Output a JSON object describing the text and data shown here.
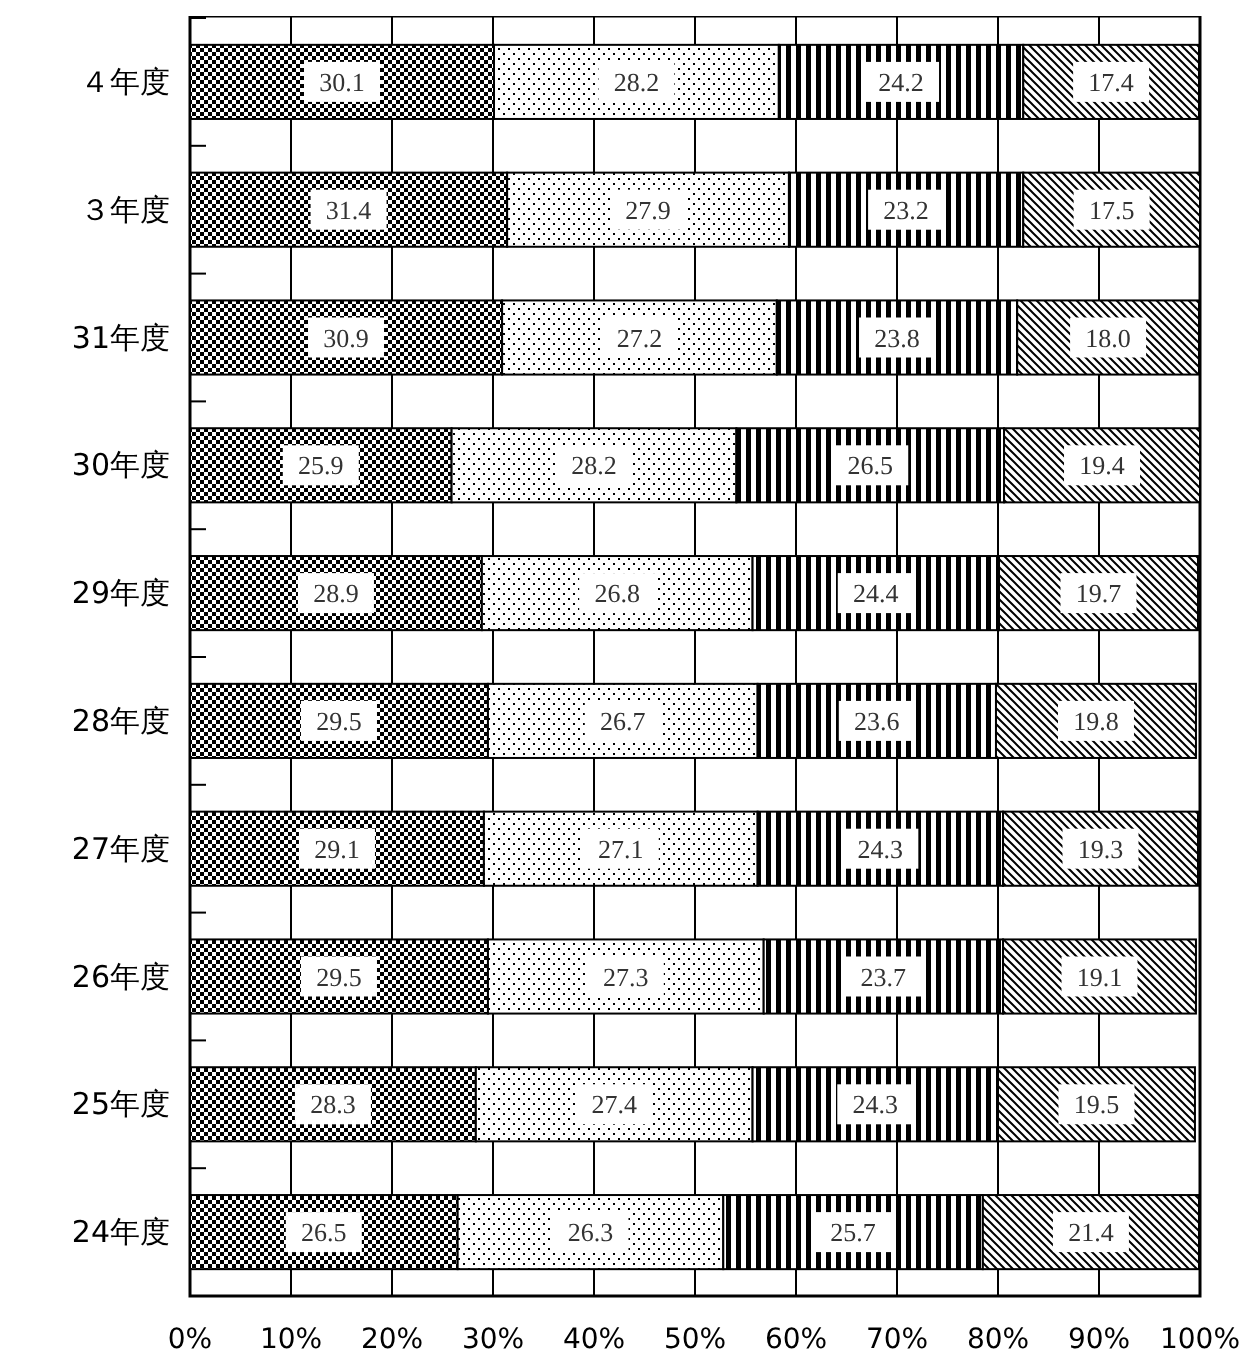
{
  "chart_data": {
    "type": "bar",
    "orientation": "horizontal",
    "stacked": true,
    "categories": [
      "４年度",
      "３年度",
      "31年度",
      "30年度",
      "29年度",
      "28年度",
      "27年度",
      "26年度",
      "25年度",
      "24年度"
    ],
    "series": [
      {
        "color": "#000000",
        "values": [
          30.1,
          31.4,
          30.9,
          25.9,
          28.9,
          29.5,
          29.1,
          29.5,
          28.3,
          26.5
        ],
        "value_labels": [
          "30.1",
          "31.4",
          "30.9",
          "25.9",
          "28.9",
          "29.5",
          "29.1",
          "29.5",
          "28.3",
          "26.5"
        ]
      },
      {
        "color": "#000000",
        "values": [
          28.2,
          27.9,
          27.2,
          28.2,
          26.8,
          26.7,
          27.1,
          27.3,
          27.4,
          26.3
        ],
        "value_labels": [
          "28.2",
          "27.9",
          "27.2",
          "28.2",
          "26.8",
          "26.7",
          "27.1",
          "27.3",
          "27.4",
          "26.3"
        ]
      },
      {
        "color": "#000000",
        "values": [
          24.2,
          23.2,
          23.8,
          26.5,
          24.4,
          23.6,
          24.3,
          23.7,
          24.3,
          25.7
        ],
        "value_labels": [
          "24.2",
          "23.2",
          "23.8",
          "26.5",
          "24.4",
          "23.6",
          "24.3",
          "23.7",
          "24.3",
          "25.7"
        ]
      },
      {
        "color": "#000000",
        "values": [
          17.4,
          17.5,
          18.0,
          19.4,
          19.7,
          19.8,
          19.3,
          19.1,
          19.5,
          21.4
        ],
        "value_labels": [
          "17.4",
          "17.5",
          "18.0",
          "19.4",
          "19.7",
          "19.8",
          "19.3",
          "19.1",
          "19.5",
          "21.4"
        ]
      }
    ],
    "xlim": [
      0,
      100
    ],
    "xticks": [
      {
        "value": 0,
        "label": "0%"
      },
      {
        "value": 10,
        "label": "10%"
      },
      {
        "value": 20,
        "label": "20%"
      },
      {
        "value": 30,
        "label": "30%"
      },
      {
        "value": 40,
        "label": "40%"
      },
      {
        "value": 50,
        "label": "50%"
      },
      {
        "value": 60,
        "label": "60%"
      },
      {
        "value": 70,
        "label": "70%"
      },
      {
        "value": 80,
        "label": "80%"
      },
      {
        "value": 90,
        "label": "90%"
      },
      {
        "value": 100,
        "label": "100%"
      }
    ],
    "grid": "x"
  }
}
